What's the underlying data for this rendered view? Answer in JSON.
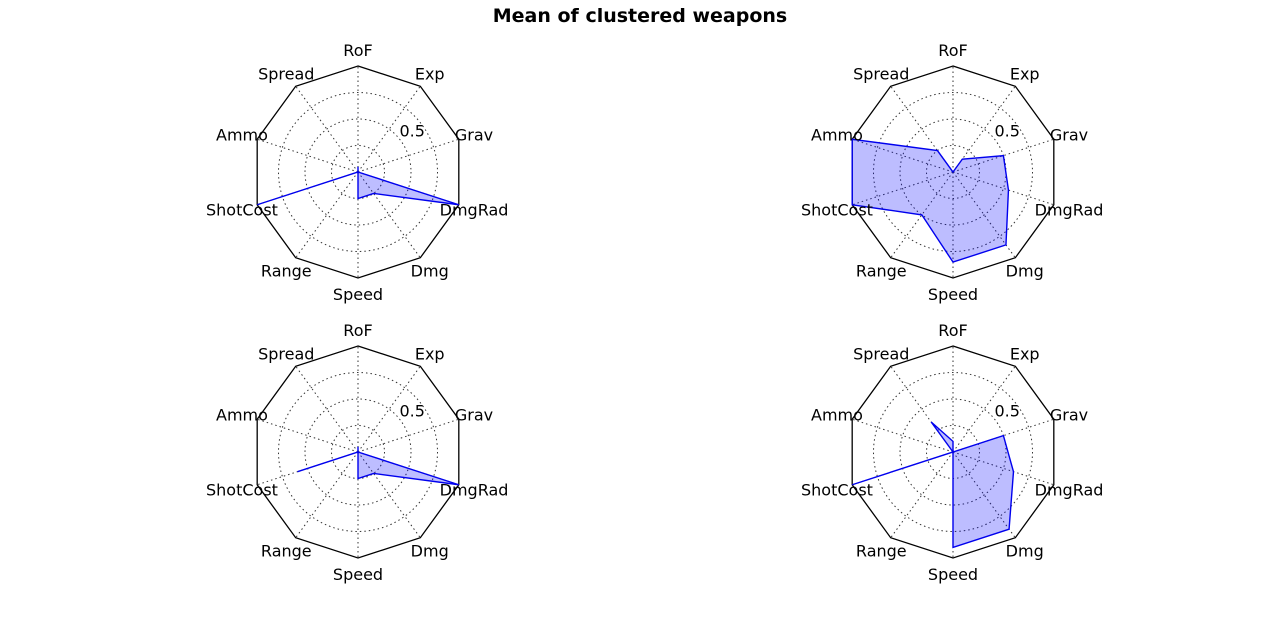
{
  "chart_data": {
    "type": "radar",
    "title": "Mean of clustered weapons",
    "axes": [
      "RoF",
      "Exp",
      "Grav",
      "DmgRad",
      "Dmg",
      "Speed",
      "Range",
      "ShotCost",
      "Ammo",
      "Spread"
    ],
    "rlim": [
      0,
      1
    ],
    "radial_ticks": [
      0.5
    ],
    "radial_tick_label": "0.5",
    "grid": true,
    "line_color": "#0000ee",
    "fill_color": "#0000ff",
    "fill_opacity": 0.26,
    "subplots": [
      {
        "values": [
          0.05,
          0.0,
          0.0,
          1.0,
          0.25,
          0.25,
          0.0,
          1.0,
          0.0,
          0.0
        ]
      },
      {
        "values": [
          0.0,
          0.15,
          0.5,
          0.55,
          0.85,
          0.85,
          0.5,
          1.0,
          1.0,
          0.25
        ]
      },
      {
        "values": [
          0.05,
          0.0,
          0.0,
          1.0,
          0.25,
          0.25,
          0.0,
          0.6,
          0.0,
          0.0
        ]
      },
      {
        "values": [
          0.1,
          0.0,
          0.5,
          0.6,
          0.9,
          0.9,
          0.0,
          1.0,
          0.0,
          0.35
        ]
      }
    ]
  }
}
